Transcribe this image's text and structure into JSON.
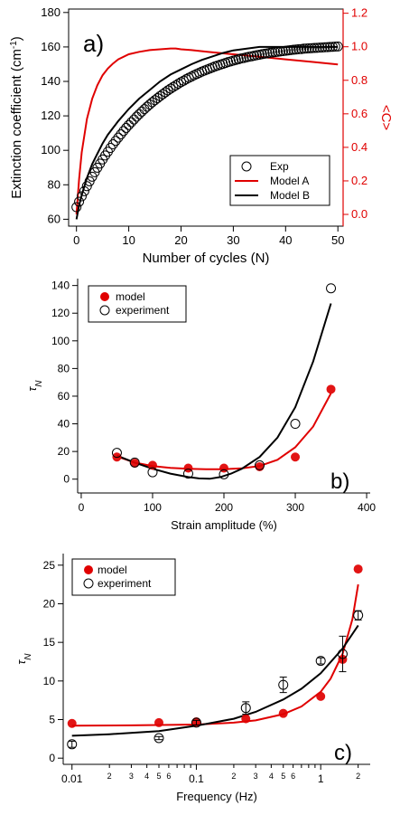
{
  "chart_data": [
    {
      "type": "scatter",
      "panel_label": "a)",
      "xlabel": "Number of cycles (N)",
      "ylabel": "Extinction coefficient (cm",
      "ylabel_sup": "-1",
      "ylabel_close": ")",
      "y2label": "<C>",
      "xlim": [
        -1.5,
        51
      ],
      "ylim": [
        56,
        182
      ],
      "y2lim": [
        -0.07,
        1.225
      ],
      "xticks": [
        0,
        10,
        20,
        30,
        40,
        50
      ],
      "yticks": [
        60,
        80,
        100,
        120,
        140,
        160,
        180
      ],
      "y2ticks": [
        0.0,
        0.2,
        0.4,
        0.6,
        0.8,
        1.0,
        1.2
      ],
      "y2_color": "#e00000",
      "legend": [
        "Exp",
        "Model A",
        "Model B"
      ],
      "legend_position": "bottom-right",
      "series": [
        {
          "name": "Exp",
          "style": "open-circle",
          "axis": "left",
          "x": [
            0,
            0.5,
            1,
            1.5,
            2,
            2.5,
            3,
            3.5,
            4,
            4.5,
            5,
            5.5,
            6,
            6.5,
            7,
            7.5,
            8,
            8.5,
            9,
            9.5,
            10,
            10.5,
            11,
            11.5,
            12,
            12.5,
            13,
            13.5,
            14,
            14.5,
            15,
            15.5,
            16,
            16.5,
            17,
            17.5,
            18,
            18.5,
            19,
            19.5,
            20,
            20.5,
            21,
            21.5,
            22,
            22.5,
            23,
            23.5,
            24,
            24.5,
            25,
            25.5,
            26,
            26.5,
            27,
            27.5,
            28,
            28.5,
            29,
            29.5,
            30,
            30.5,
            31,
            31.5,
            32,
            32.5,
            33,
            33.5,
            34,
            34.5,
            35,
            35.5,
            36,
            36.5,
            37,
            37.5,
            38,
            38.5,
            39,
            39.5,
            40,
            40.5,
            41,
            41.5,
            42,
            42.5,
            43,
            43.5,
            44,
            44.5,
            45,
            45.5,
            46,
            46.5,
            47,
            47.5,
            48,
            48.5,
            49,
            49.5,
            50
          ],
          "y": [
            67,
            70.2,
            73.3,
            76.3,
            79.2,
            82.0,
            84.7,
            87.3,
            89.9,
            92.3,
            94.7,
            97.0,
            99.2,
            101.4,
            103.5,
            105.5,
            107.4,
            109.3,
            111.2,
            113.0,
            114.7,
            116.3,
            117.9,
            119.5,
            121.0,
            122.5,
            123.9,
            125.3,
            126.6,
            127.9,
            129.1,
            130.3,
            131.5,
            132.6,
            133.7,
            134.8,
            135.8,
            136.8,
            137.7,
            138.7,
            139.6,
            140.4,
            141.3,
            142.1,
            142.8,
            143.6,
            144.3,
            145.0,
            145.7,
            146.3,
            146.9,
            147.5,
            148.1,
            148.7,
            149.2,
            149.7,
            150.2,
            150.7,
            151.2,
            151.6,
            152.1,
            152.5,
            152.9,
            153.3,
            153.6,
            154.0,
            154.3,
            154.6,
            154.9,
            155.2,
            155.5,
            155.8,
            156.1,
            156.3,
            156.6,
            156.8,
            157.0,
            157.2,
            157.4,
            157.6,
            157.8,
            158.0,
            158.2,
            158.4,
            158.5,
            158.7,
            158.8,
            159.0,
            159.1,
            159.2,
            159.3,
            159.4,
            159.5,
            159.6,
            159.7,
            159.8,
            159.9,
            160.0,
            160.1,
            160.2,
            160.3
          ]
        },
        {
          "name": "Model A",
          "style": "line",
          "color": "#e00000",
          "axis": "right",
          "x": [
            0,
            0.5,
            1,
            2,
            3,
            4,
            5,
            6,
            7,
            8,
            10,
            12,
            14,
            16,
            18,
            19,
            20,
            22,
            25,
            30,
            35,
            40,
            45,
            50
          ],
          "y": [
            0.0,
            0.21,
            0.37,
            0.57,
            0.69,
            0.77,
            0.83,
            0.87,
            0.9,
            0.925,
            0.955,
            0.97,
            0.98,
            0.985,
            0.99,
            0.99,
            0.985,
            0.98,
            0.97,
            0.955,
            0.94,
            0.925,
            0.91,
            0.895
          ]
        },
        {
          "name": "Model B",
          "style": "line",
          "color": "#000000",
          "axis": "left",
          "x": [
            0,
            0.5,
            1,
            2,
            3,
            4,
            5,
            6,
            7,
            8,
            10,
            12,
            14,
            16,
            18,
            20,
            22,
            24,
            26,
            28,
            30,
            35,
            40,
            45,
            50
          ],
          "y": [
            60,
            68,
            74,
            84,
            92,
            98,
            104,
            109,
            113,
            117,
            124,
            130,
            135,
            140,
            144,
            147,
            150,
            152.5,
            154.5,
            156.5,
            158,
            160,
            160,
            160,
            160
          ]
        }
      ]
    },
    {
      "type": "scatter",
      "panel_label": "b)",
      "xlabel": "Strain amplitude (%)",
      "ylabel": "τ",
      "ylabel_sub": "N",
      "xlim": [
        -5,
        405
      ],
      "ylim": [
        -10,
        145
      ],
      "xticks": [
        0,
        100,
        200,
        300,
        400
      ],
      "yticks": [
        0,
        20,
        40,
        60,
        80,
        100,
        120,
        140
      ],
      "legend": [
        "model",
        "experiment"
      ],
      "legend_position": "top-left",
      "series": [
        {
          "name": "model",
          "style": "filled-circle",
          "color": "#e00000",
          "x": [
            50,
            75,
            100,
            150,
            200,
            250,
            300,
            350
          ],
          "y": [
            16,
            11.5,
            10,
            8,
            8,
            9,
            16,
            65
          ]
        },
        {
          "name": "experiment",
          "style": "open-circle",
          "x": [
            50,
            75,
            100,
            150,
            200,
            250,
            300,
            350
          ],
          "y": [
            19,
            12,
            5,
            4,
            3.5,
            10,
            40,
            138
          ]
        },
        {
          "name": "model fit",
          "style": "line",
          "color": "#e00000",
          "x": [
            50,
            75,
            100,
            125,
            150,
            175,
            200,
            225,
            250,
            275,
            300,
            325,
            350
          ],
          "y": [
            16.5,
            12,
            9.5,
            8.2,
            7.5,
            7.2,
            7.2,
            7.8,
            9.5,
            14,
            23,
            38,
            62
          ]
        },
        {
          "name": "experiment fit",
          "style": "line",
          "color": "#000000",
          "x": [
            50,
            75,
            100,
            125,
            150,
            165,
            180,
            195,
            210,
            225,
            250,
            275,
            300,
            325,
            350
          ],
          "y": [
            17,
            12,
            7.5,
            4,
            1.5,
            0.5,
            0.3,
            1.5,
            4,
            7.5,
            16,
            30,
            52,
            85,
            127
          ]
        }
      ]
    },
    {
      "type": "scatter",
      "panel_label": "c)",
      "xlabel": "Frequency (Hz)",
      "ylabel": "τ",
      "ylabel_sub": "N",
      "xscale": "log",
      "xlim": [
        0.0085,
        2.5
      ],
      "ylim": [
        -0.8,
        26.5
      ],
      "xticks_major": [
        0.01,
        0.1,
        1
      ],
      "xtick_labels_major": [
        "0.01",
        "0.1",
        "1"
      ],
      "xticks_minor_labeled": [
        0.02,
        0.03,
        0.04,
        0.05,
        0.06,
        0.2,
        0.3,
        0.4,
        0.5,
        0.6,
        2
      ],
      "xtick_labels_minor": [
        "2",
        "3",
        "4",
        "5",
        "6",
        "2",
        "3",
        "4",
        "5",
        "6",
        "2"
      ],
      "xticks_minor_unlabeled": [
        0.07,
        0.08,
        0.09,
        0.7,
        0.8,
        0.9
      ],
      "yticks": [
        0,
        5,
        10,
        15,
        20,
        25
      ],
      "legend": [
        "model",
        "experiment"
      ],
      "legend_position": "top-left",
      "series": [
        {
          "name": "model",
          "style": "filled-circle",
          "color": "#e00000",
          "x": [
            0.01,
            0.05,
            0.1,
            0.25,
            0.5,
            1,
            1.5,
            2
          ],
          "y": [
            4.5,
            4.6,
            4.7,
            5.1,
            5.8,
            8.0,
            12.8,
            24.5
          ]
        },
        {
          "name": "experiment",
          "style": "open-circle",
          "x": [
            0.01,
            0.05,
            0.1,
            0.25,
            0.5,
            1,
            1.5,
            2
          ],
          "y": [
            1.8,
            2.6,
            4.6,
            6.5,
            9.5,
            12.6,
            13.5,
            18.5
          ],
          "yerr": [
            0.4,
            0.2,
            0.3,
            0.8,
            1.0,
            0.4,
            2.3,
            0.6
          ]
        },
        {
          "name": "model fit",
          "style": "line",
          "color": "#e00000",
          "x": [
            0.01,
            0.03,
            0.1,
            0.2,
            0.3,
            0.5,
            0.7,
            1.0,
            1.2,
            1.5,
            1.8,
            2.0
          ],
          "y": [
            4.2,
            4.25,
            4.35,
            4.6,
            4.9,
            5.7,
            6.7,
            8.6,
            10.3,
            13.5,
            18,
            22.5
          ]
        },
        {
          "name": "experiment fit",
          "style": "line",
          "color": "#000000",
          "x": [
            0.01,
            0.02,
            0.05,
            0.1,
            0.2,
            0.3,
            0.5,
            0.7,
            1.0,
            1.5,
            2.0
          ],
          "y": [
            2.9,
            3.1,
            3.5,
            4.2,
            5.1,
            6.0,
            7.6,
            9.0,
            11.0,
            14.2,
            17.2
          ]
        }
      ]
    }
  ]
}
